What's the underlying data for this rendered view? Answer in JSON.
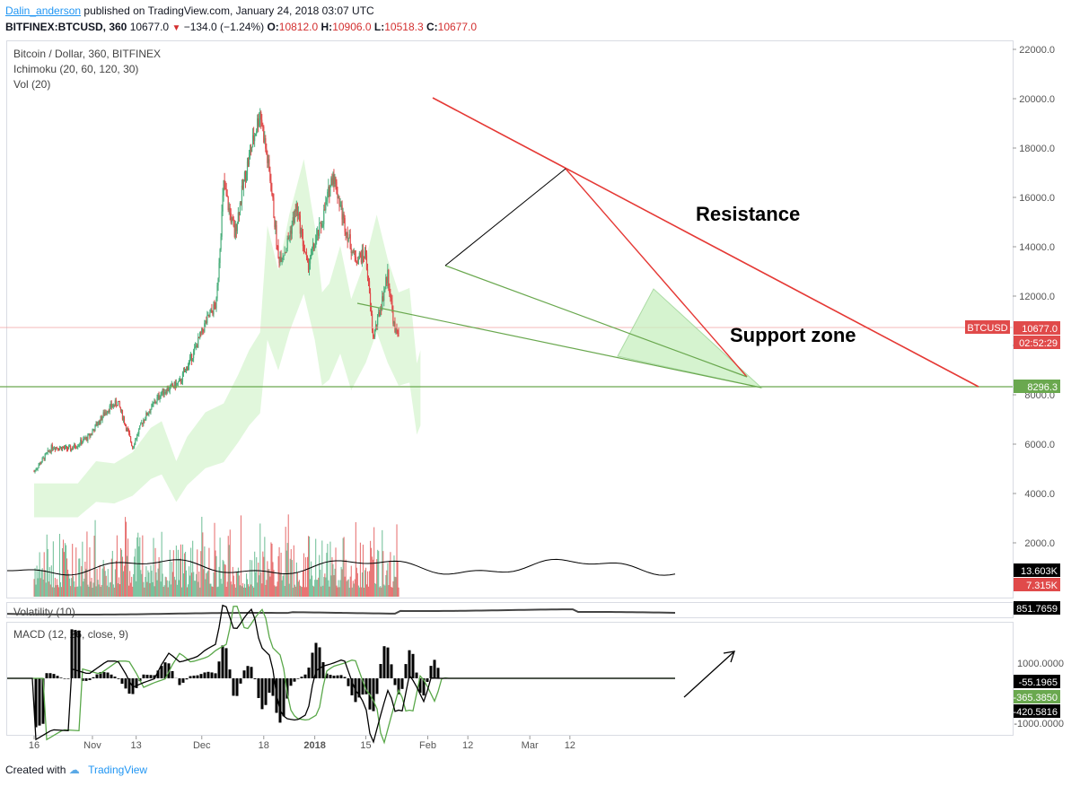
{
  "header": {
    "user": "Dalin_anderson",
    "published": " published on TradingView.com, January 24, 2018 03:07 UTC",
    "symbol": "BITFINEX:BTCUSD, 360",
    "price": "10677.0",
    "change": "−134.0 (−1.24%)",
    "o_label": "O:",
    "o": "10812.0",
    "h_label": "H:",
    "h": "10906.0",
    "l_label": "L:",
    "l": "10518.3",
    "c_label": "C:",
    "c": "10677.0"
  },
  "legend": {
    "line1": "Bitcoin / Dollar, 360, BITFINEX",
    "line2": "Ichimoku (20, 60, 120, 30)",
    "line3": "Vol (20)",
    "volatility": "Volatility (10)",
    "macd": "MACD (12, 26, close, 9)"
  },
  "footer": {
    "created": "Created with",
    "brand": "TradingView"
  },
  "colors": {
    "up": "#4caf7d",
    "down": "#e04a4a",
    "red_line": "#e53935",
    "green_line": "#6aa84f",
    "cloud": "#c8f0c0"
  },
  "chart_data": {
    "type": "candlestick",
    "x_ticks": [
      "16",
      "Nov",
      "13",
      "Dec",
      "18",
      "2018",
      "15",
      "Feb",
      "12",
      "Mar",
      "12"
    ],
    "y_ticks": [
      "22000.0",
      "20000.0",
      "18000.0",
      "16000.0",
      "14000.0",
      "12000.0",
      "10000.0",
      "8000.0",
      "6000.0",
      "4000.0",
      "2000.0"
    ],
    "ylim": [
      0,
      22000
    ],
    "last_price": "10677.0",
    "last_tag": "BTCUSD",
    "countdown": "02:52:29",
    "support_level": "8296.3",
    "price_path": [
      [
        "2017-10-16",
        4900
      ],
      [
        "2017-10-21",
        5900
      ],
      [
        "2017-10-26",
        5800
      ],
      [
        "2017-10-31",
        6300
      ],
      [
        "2017-11-05",
        7400
      ],
      [
        "2017-11-08",
        7700
      ],
      [
        "2017-11-12",
        5900
      ],
      [
        "2017-11-15",
        7000
      ],
      [
        "2017-11-20",
        8100
      ],
      [
        "2017-11-25",
        8500
      ],
      [
        "2017-11-29",
        9800
      ],
      [
        "2017-12-02",
        10900
      ],
      [
        "2017-12-05",
        11700
      ],
      [
        "2017-12-07",
        16500
      ],
      [
        "2017-12-10",
        14500
      ],
      [
        "2017-12-13",
        17000
      ],
      [
        "2017-12-17",
        19500
      ],
      [
        "2017-12-20",
        16500
      ],
      [
        "2017-12-22",
        13500
      ],
      [
        "2017-12-24",
        13900
      ],
      [
        "2017-12-27",
        15600
      ],
      [
        "2017-12-30",
        13200
      ],
      [
        "2018-01-03",
        15000
      ],
      [
        "2018-01-06",
        17000
      ],
      [
        "2018-01-09",
        15000
      ],
      [
        "2018-01-12",
        13500
      ],
      [
        "2018-01-15",
        13700
      ],
      [
        "2018-01-17",
        10300
      ],
      [
        "2018-01-19",
        11500
      ],
      [
        "2018-01-21",
        12900
      ],
      [
        "2018-01-23",
        10500
      ],
      [
        "2018-01-24",
        10677
      ]
    ],
    "indicators": {
      "volume": {
        "last_labels": [
          "13.603K",
          "7.315K"
        ]
      },
      "volatility": {
        "last": "851.7659"
      },
      "macd": {
        "y_ticks": [
          "1000.0000",
          "-1000.0000"
        ],
        "last_values": [
          "-55.1965",
          "-365.3850",
          "-420.5816"
        ]
      }
    },
    "annotations": [
      "Resistance",
      "Support zone"
    ]
  }
}
